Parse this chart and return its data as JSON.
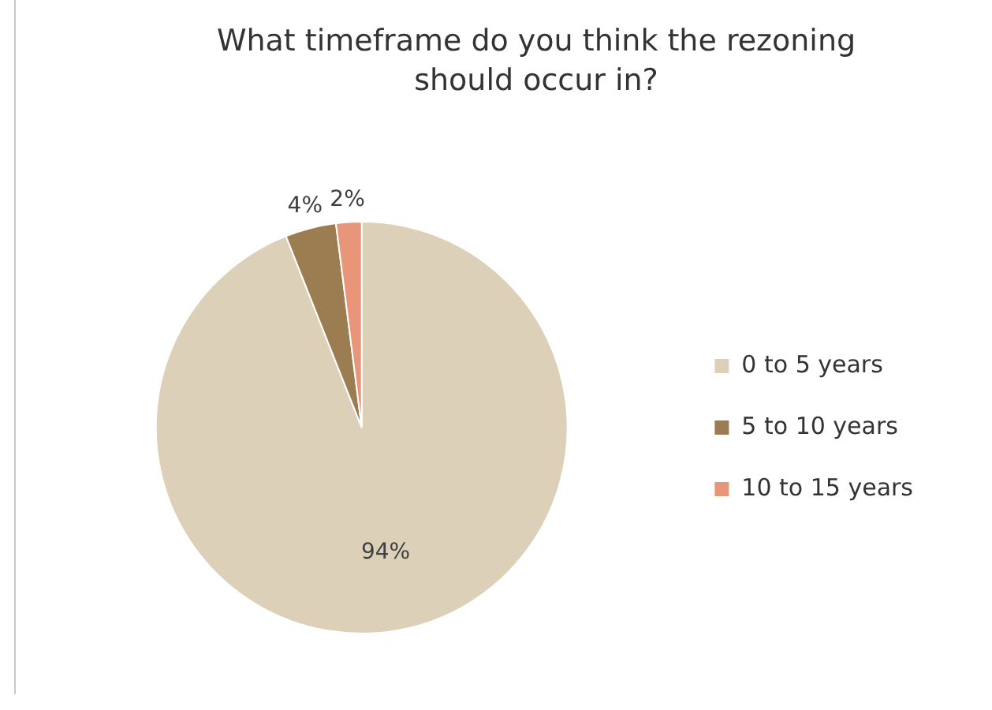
{
  "chart_data": {
    "type": "pie",
    "title": "What timeframe do you think the rezoning should occur in?",
    "categories": [
      "0 to 5 years",
      "5 to 10 years",
      "10 to 15 years"
    ],
    "values": [
      94,
      4,
      2
    ],
    "colors": [
      "#ddd0b8",
      "#9c7d52",
      "#e8967a"
    ],
    "value_labels": [
      "94%",
      "4%",
      "2%"
    ],
    "legend": "right"
  }
}
